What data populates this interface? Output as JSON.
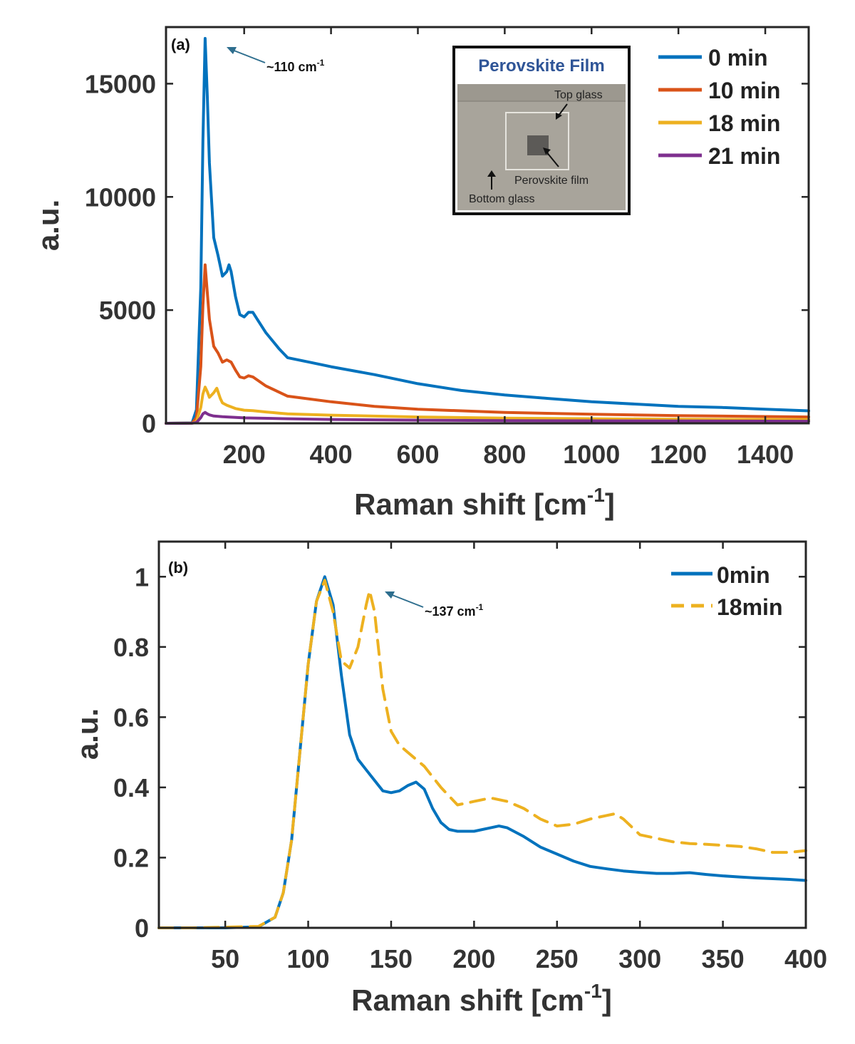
{
  "chart_data": [
    {
      "type": "line",
      "panel_label": "(a)",
      "xlabel": "Raman shift [cm",
      "xlabel_sup": "-1",
      "xlabel_end": "]",
      "ylabel": "a.u.",
      "xlim": [
        20,
        1500
      ],
      "ylim": [
        0,
        17500
      ],
      "xticks": [
        200,
        400,
        600,
        800,
        1000,
        1200,
        1400
      ],
      "yticks": [
        0,
        5000,
        10000,
        15000
      ],
      "legend_position": "top-right",
      "annotation": {
        "text": "~110 cm",
        "sup": "-1",
        "x": 110,
        "y": 17000
      },
      "inset": {
        "title": "Perovskite Film",
        "labels": [
          "Top glass",
          "Perovskite film",
          "Bottom glass"
        ]
      },
      "series": [
        {
          "name": "0 min",
          "color": "#0072BD",
          "x": [
            20,
            80,
            90,
            100,
            105,
            110,
            115,
            120,
            130,
            140,
            150,
            160,
            165,
            170,
            180,
            190,
            200,
            210,
            220,
            230,
            250,
            280,
            300,
            350,
            400,
            500,
            600,
            700,
            800,
            900,
            1000,
            1100,
            1200,
            1300,
            1400,
            1500
          ],
          "y": [
            0,
            20,
            600,
            6000,
            12500,
            17000,
            14500,
            11500,
            8200,
            7400,
            6500,
            6700,
            7000,
            6700,
            5600,
            4800,
            4700,
            4900,
            4900,
            4600,
            4000,
            3300,
            2900,
            2700,
            2500,
            2150,
            1750,
            1450,
            1250,
            1100,
            950,
            850,
            750,
            700,
            620,
            550
          ]
        },
        {
          "name": "10 min",
          "color": "#D95319",
          "x": [
            20,
            80,
            90,
            100,
            105,
            110,
            115,
            120,
            130,
            140,
            150,
            160,
            170,
            180,
            190,
            200,
            210,
            220,
            250,
            300,
            400,
            500,
            600,
            800,
            1000,
            1200,
            1400,
            1500
          ],
          "y": [
            0,
            10,
            250,
            2500,
            5200,
            7000,
            5800,
            4600,
            3400,
            3100,
            2700,
            2800,
            2700,
            2350,
            2050,
            2000,
            2100,
            2050,
            1650,
            1200,
            950,
            750,
            620,
            480,
            400,
            340,
            300,
            280
          ]
        },
        {
          "name": "18 min",
          "color": "#EDB120",
          "x": [
            20,
            80,
            90,
            100,
            105,
            110,
            115,
            120,
            130,
            137,
            145,
            150,
            160,
            180,
            200,
            220,
            250,
            280,
            300,
            400,
            600,
            800,
            1000,
            1200,
            1500
          ],
          "y": [
            0,
            5,
            80,
            700,
            1300,
            1600,
            1400,
            1150,
            1350,
            1550,
            1100,
            900,
            800,
            650,
            580,
            560,
            500,
            450,
            420,
            360,
            280,
            230,
            200,
            180,
            160
          ]
        },
        {
          "name": "21 min",
          "color": "#7E2F8E",
          "x": [
            20,
            80,
            90,
            100,
            105,
            110,
            115,
            120,
            130,
            150,
            200,
            300,
            400,
            600,
            800,
            1000,
            1200,
            1500
          ],
          "y": [
            0,
            2,
            30,
            250,
            420,
            480,
            420,
            370,
            320,
            290,
            240,
            200,
            170,
            140,
            120,
            110,
            100,
            90
          ]
        }
      ]
    },
    {
      "type": "line",
      "panel_label": "(b)",
      "xlabel": "Raman shift [cm",
      "xlabel_sup": "-1",
      "xlabel_end": "]",
      "ylabel": "a.u.",
      "xlim": [
        10,
        400
      ],
      "ylim": [
        0,
        1.1
      ],
      "xticks": [
        50,
        100,
        150,
        200,
        250,
        300,
        350,
        400
      ],
      "yticks": [
        0,
        0.2,
        0.4,
        0.6,
        0.8,
        1
      ],
      "legend_position": "top-right",
      "annotation": {
        "text": "~137 cm",
        "sup": "-1",
        "x": 137,
        "y": 0.96
      },
      "series": [
        {
          "name": "0min",
          "color": "#0072BD",
          "dash": false,
          "x": [
            10,
            30,
            50,
            70,
            80,
            85,
            90,
            95,
            100,
            105,
            110,
            115,
            120,
            125,
            130,
            135,
            140,
            145,
            150,
            155,
            160,
            165,
            170,
            175,
            180,
            185,
            190,
            200,
            210,
            215,
            220,
            230,
            240,
            250,
            260,
            270,
            280,
            290,
            300,
            310,
            320,
            330,
            340,
            350,
            360,
            370,
            380,
            390,
            400
          ],
          "y": [
            0,
            0,
            0,
            0.003,
            0.03,
            0.1,
            0.25,
            0.5,
            0.75,
            0.93,
            1.0,
            0.92,
            0.72,
            0.55,
            0.48,
            0.45,
            0.42,
            0.39,
            0.385,
            0.39,
            0.405,
            0.415,
            0.395,
            0.34,
            0.3,
            0.28,
            0.275,
            0.275,
            0.285,
            0.29,
            0.285,
            0.26,
            0.23,
            0.21,
            0.19,
            0.175,
            0.168,
            0.162,
            0.158,
            0.155,
            0.155,
            0.157,
            0.152,
            0.148,
            0.145,
            0.142,
            0.14,
            0.138,
            0.135
          ]
        },
        {
          "name": "18min",
          "color": "#EDB120",
          "dash": true,
          "x": [
            10,
            30,
            50,
            70,
            80,
            85,
            90,
            95,
            100,
            105,
            110,
            115,
            120,
            125,
            130,
            135,
            137,
            140,
            145,
            150,
            155,
            160,
            170,
            180,
            190,
            200,
            210,
            220,
            230,
            240,
            250,
            260,
            270,
            280,
            285,
            290,
            300,
            310,
            320,
            330,
            340,
            350,
            360,
            370,
            380,
            390,
            400
          ],
          "y": [
            0,
            0,
            0.002,
            0.004,
            0.03,
            0.1,
            0.25,
            0.5,
            0.75,
            0.93,
            0.99,
            0.9,
            0.76,
            0.74,
            0.8,
            0.92,
            0.96,
            0.9,
            0.68,
            0.56,
            0.52,
            0.5,
            0.46,
            0.4,
            0.35,
            0.36,
            0.37,
            0.36,
            0.34,
            0.31,
            0.29,
            0.295,
            0.31,
            0.32,
            0.325,
            0.31,
            0.265,
            0.255,
            0.245,
            0.24,
            0.238,
            0.235,
            0.232,
            0.225,
            0.215,
            0.215,
            0.22
          ]
        }
      ]
    }
  ]
}
